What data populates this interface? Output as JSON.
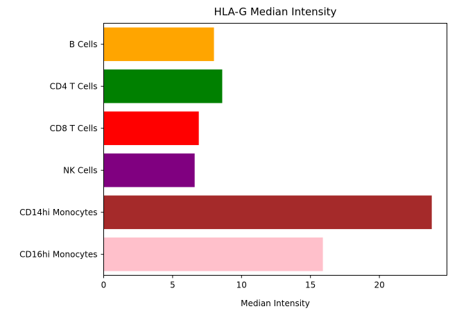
{
  "chart_data": {
    "type": "bar",
    "orientation": "horizontal",
    "title": "HLA-G Median Intensity",
    "xlabel": "Median Intensity",
    "ylabel": "",
    "xlim": [
      0,
      24.9
    ],
    "xticks": [
      0,
      5,
      10,
      15,
      20
    ],
    "grid": false,
    "categories": [
      "B Cells",
      "CD4 T Cells",
      "CD8 T Cells",
      "NK Cells",
      "CD14hi Monocytes",
      "CD16hi Monocytes"
    ],
    "values": [
      8.0,
      8.6,
      6.9,
      6.6,
      23.8,
      15.9
    ],
    "colors": [
      "#ffa500",
      "#008000",
      "#ff0000",
      "#800080",
      "#a52a2a",
      "#ffc0cb"
    ]
  }
}
